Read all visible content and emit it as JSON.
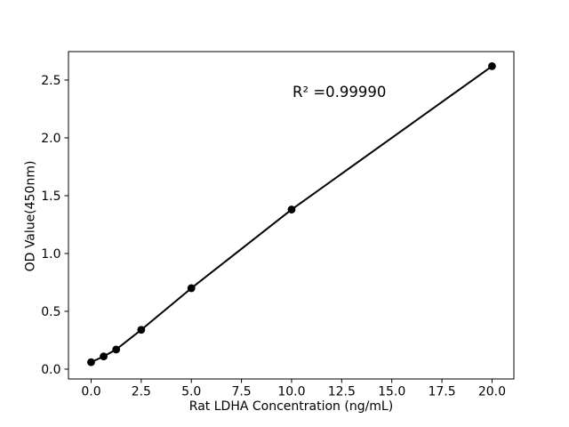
{
  "figure": {
    "background_color": "#ffffff",
    "text_color": "#000000"
  },
  "chart_data": {
    "type": "line",
    "title": "",
    "xlabel": "Rat LDHA Concentration (ng/mL)",
    "ylabel": "OD Value(450nm)",
    "annotation": "R² =0.99990",
    "r_squared": 0.9999,
    "x": [
      0,
      0.625,
      1.25,
      2.5,
      5,
      10,
      20
    ],
    "y": [
      0.06,
      0.11,
      0.17,
      0.34,
      0.7,
      1.38,
      2.62
    ],
    "xticks": [
      0,
      2.5,
      5,
      7.5,
      10,
      12.5,
      15,
      17.5,
      20
    ],
    "xtick_labels": [
      "0.0",
      "2.5",
      "5.0",
      "7.5",
      "10.0",
      "12.5",
      "15.0",
      "17.5",
      "20.0"
    ],
    "yticks": [
      0,
      0.5,
      1,
      1.5,
      2,
      2.5
    ],
    "ytick_labels": [
      "0.0",
      "0.5",
      "1.0",
      "1.5",
      "2.0",
      "2.5"
    ],
    "xlim": [
      -1.13,
      21.09
    ],
    "ylim": [
      -0.085,
      2.746
    ],
    "grid": false,
    "legend_position": "none",
    "marker": "circle",
    "line_color": "#000000",
    "marker_color": "#000000",
    "axes_color": "#000000",
    "tick_label_color": "#000000"
  }
}
